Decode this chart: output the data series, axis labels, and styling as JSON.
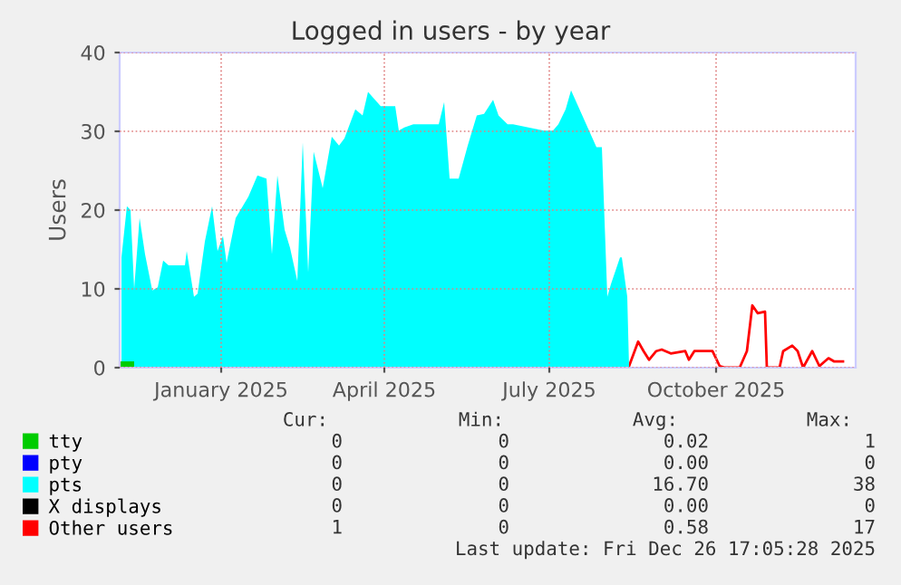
{
  "chart_data": {
    "type": "area",
    "title": "Logged in users - by year",
    "ylabel": "Users",
    "xlim": [
      "2024-11-06",
      "2025-12-17"
    ],
    "xticks": [
      {
        "value": "2025-01-01",
        "label": "January 2025"
      },
      {
        "value": "2025-04-01",
        "label": "April 2025"
      },
      {
        "value": "2025-07-01",
        "label": "July 2025"
      },
      {
        "value": "2025-10-01",
        "label": "October 2025"
      }
    ],
    "ylim": [
      0,
      40
    ],
    "yticks": [
      0,
      10,
      20,
      30,
      40
    ],
    "grid": true,
    "legend": "bottom",
    "series": [
      {
        "name": "tty",
        "color": "#00cc00",
        "type": "bar",
        "x": [
          "2024-11-10"
        ],
        "values": [
          0.8
        ]
      },
      {
        "name": "pty",
        "color": "#0000ff"
      },
      {
        "name": "pts",
        "color": "#00ffff",
        "x": [
          "2024-11-07",
          "2024-11-10",
          "2024-11-12",
          "2024-11-14",
          "2024-11-17",
          "2024-11-20",
          "2024-11-24",
          "2024-11-27",
          "2024-11-30",
          "2024-12-03",
          "2024-12-12",
          "2024-12-13",
          "2024-12-17",
          "2024-12-19",
          "2024-12-23",
          "2024-12-27",
          "2024-12-30",
          "2025-01-02",
          "2025-01-04",
          "2025-01-09",
          "2025-01-16",
          "2025-01-21",
          "2025-01-26",
          "2025-01-29",
          "2025-02-01",
          "2025-02-05",
          "2025-02-08",
          "2025-02-12",
          "2025-02-15",
          "2025-02-18",
          "2025-02-21",
          "2025-02-26",
          "2025-03-03",
          "2025-03-07",
          "2025-03-10",
          "2025-03-16",
          "2025-03-20",
          "2025-03-23",
          "2025-03-30",
          "2025-04-07",
          "2025-04-09",
          "2025-04-12",
          "2025-04-17",
          "2025-05-01",
          "2025-05-04",
          "2025-05-07",
          "2025-05-12",
          "2025-05-17",
          "2025-05-22",
          "2025-05-26",
          "2025-05-31",
          "2025-06-03",
          "2025-06-08",
          "2025-06-11",
          "2025-06-28",
          "2025-07-03",
          "2025-07-06",
          "2025-07-10",
          "2025-07-13",
          "2025-07-27",
          "2025-07-30",
          "2025-08-02",
          "2025-08-04",
          "2025-08-09",
          "2025-08-10",
          "2025-08-13",
          "2025-08-14"
        ],
        "values": [
          14,
          20.5,
          20,
          10,
          19,
          14.4,
          9.8,
          10.2,
          13.6,
          13,
          13,
          14.8,
          9,
          9.4,
          16,
          20.5,
          14.8,
          16.7,
          13.3,
          19,
          21.7,
          24.4,
          24,
          14.4,
          24.4,
          17.5,
          15.2,
          11,
          28.6,
          12.1,
          27.4,
          22.8,
          29.3,
          28.2,
          29.1,
          32.8,
          32,
          35,
          33.2,
          33.2,
          30.1,
          30.5,
          30.9,
          30.9,
          33.7,
          24,
          24,
          28.2,
          32,
          32.2,
          34,
          32,
          30.9,
          30.9,
          30.1,
          30.1,
          30.9,
          32.8,
          35.2,
          28,
          28,
          9,
          10.6,
          14,
          14,
          9,
          0
        ]
      },
      {
        "name": "X displays",
        "color": "#000000"
      },
      {
        "name": "Other users",
        "color": "#ff0000",
        "type": "line",
        "x": [
          "2025-08-14",
          "2025-08-19",
          "2025-08-22",
          "2025-08-25",
          "2025-08-29",
          "2025-09-01",
          "2025-09-06",
          "2025-09-14",
          "2025-09-16",
          "2025-09-19",
          "2025-09-29",
          "2025-10-03",
          "2025-10-06",
          "2025-10-14",
          "2025-10-18",
          "2025-10-21",
          "2025-10-24",
          "2025-10-28",
          "2025-10-29",
          "2025-11-05",
          "2025-11-07",
          "2025-11-12",
          "2025-11-15",
          "2025-11-18",
          "2025-11-23",
          "2025-11-27",
          "2025-12-02",
          "2025-12-05",
          "2025-12-10"
        ],
        "values": [
          0.2,
          3.3,
          2.1,
          1,
          2.1,
          2.3,
          1.8,
          2.1,
          1,
          2.1,
          2.1,
          0.2,
          0,
          0,
          2.1,
          7.9,
          6.9,
          7.1,
          0,
          0,
          2.1,
          2.8,
          2.1,
          0,
          2.1,
          0.2,
          1.2,
          0.8,
          0.8
        ]
      }
    ],
    "annotations": [
      "Cur:",
      "Min:",
      "Avg:",
      "Max:",
      "0",
      "0",
      "0.02",
      "1",
      "0",
      "0",
      "0.00",
      "0",
      "0",
      "0",
      "16.70",
      "38",
      "0",
      "0",
      "0.00",
      "0",
      "1",
      "0",
      "0.58",
      "17",
      "Last update: Fri Dec 26 17:05:28 2025"
    ]
  }
}
